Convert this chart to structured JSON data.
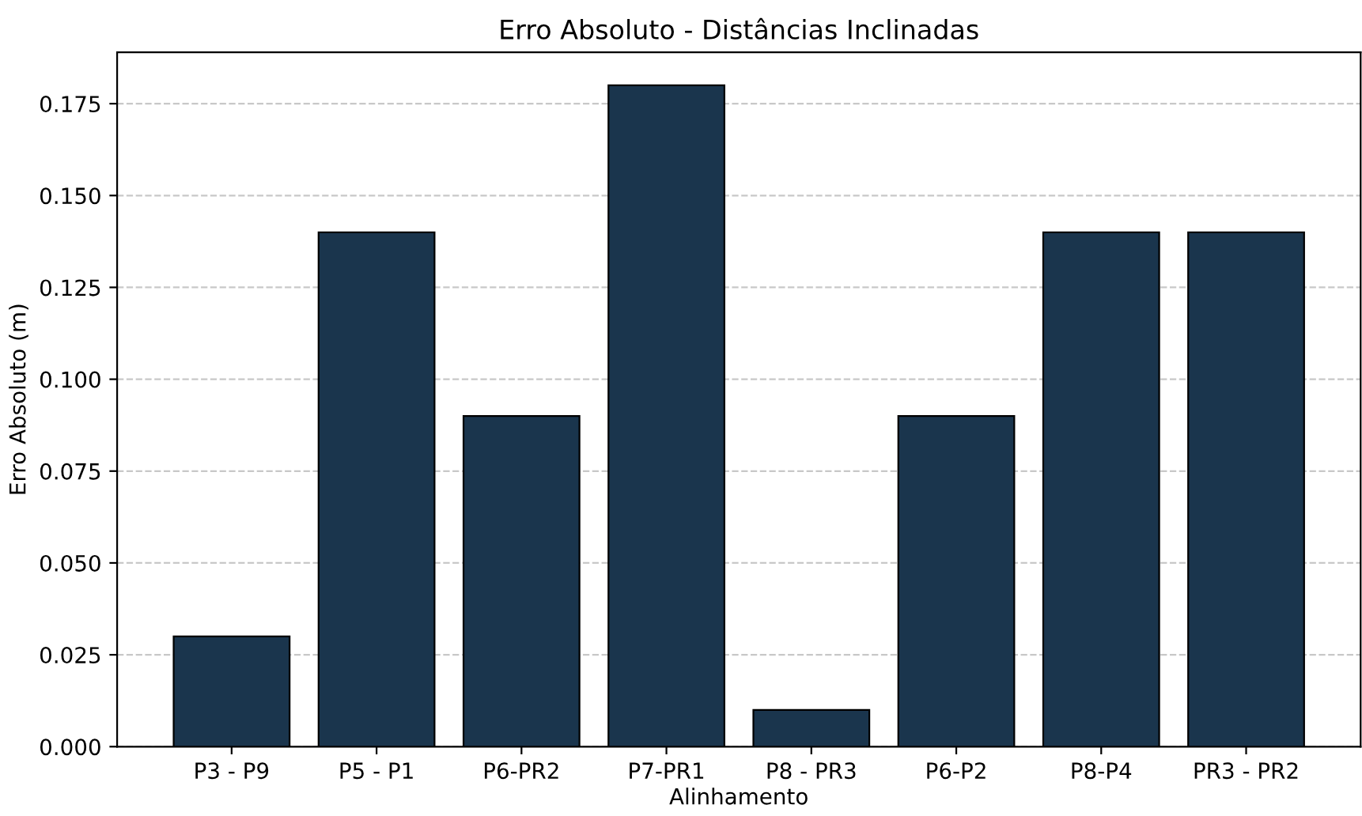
{
  "chart_data": {
    "type": "bar",
    "title": "Erro Absoluto - Distâncias Inclinadas",
    "xlabel": "Alinhamento",
    "ylabel": "Erro Absoluto (m)",
    "categories": [
      "P3 - P9",
      "P5 - P1",
      "P6-PR2",
      "P7-PR1",
      "P8 - PR3",
      "P6-P2",
      "P8-P4",
      "PR3 - PR2"
    ],
    "values": [
      0.03,
      0.14,
      0.09,
      0.18,
      0.01,
      0.09,
      0.14,
      0.14
    ],
    "color": "#1a354d",
    "ylim": [
      0,
      0.189
    ],
    "yticks": [
      {
        "value": 0,
        "label": "0.000"
      },
      {
        "value": 0.025,
        "label": "0.025"
      },
      {
        "value": 0.05,
        "label": "0.050"
      },
      {
        "value": 0.075,
        "label": "0.075"
      },
      {
        "value": 0.1,
        "label": "0.100"
      },
      {
        "value": 0.125,
        "label": "0.125"
      },
      {
        "value": 0.15,
        "label": "0.150"
      },
      {
        "value": 0.175,
        "label": "0.175"
      }
    ],
    "grid": "y"
  }
}
